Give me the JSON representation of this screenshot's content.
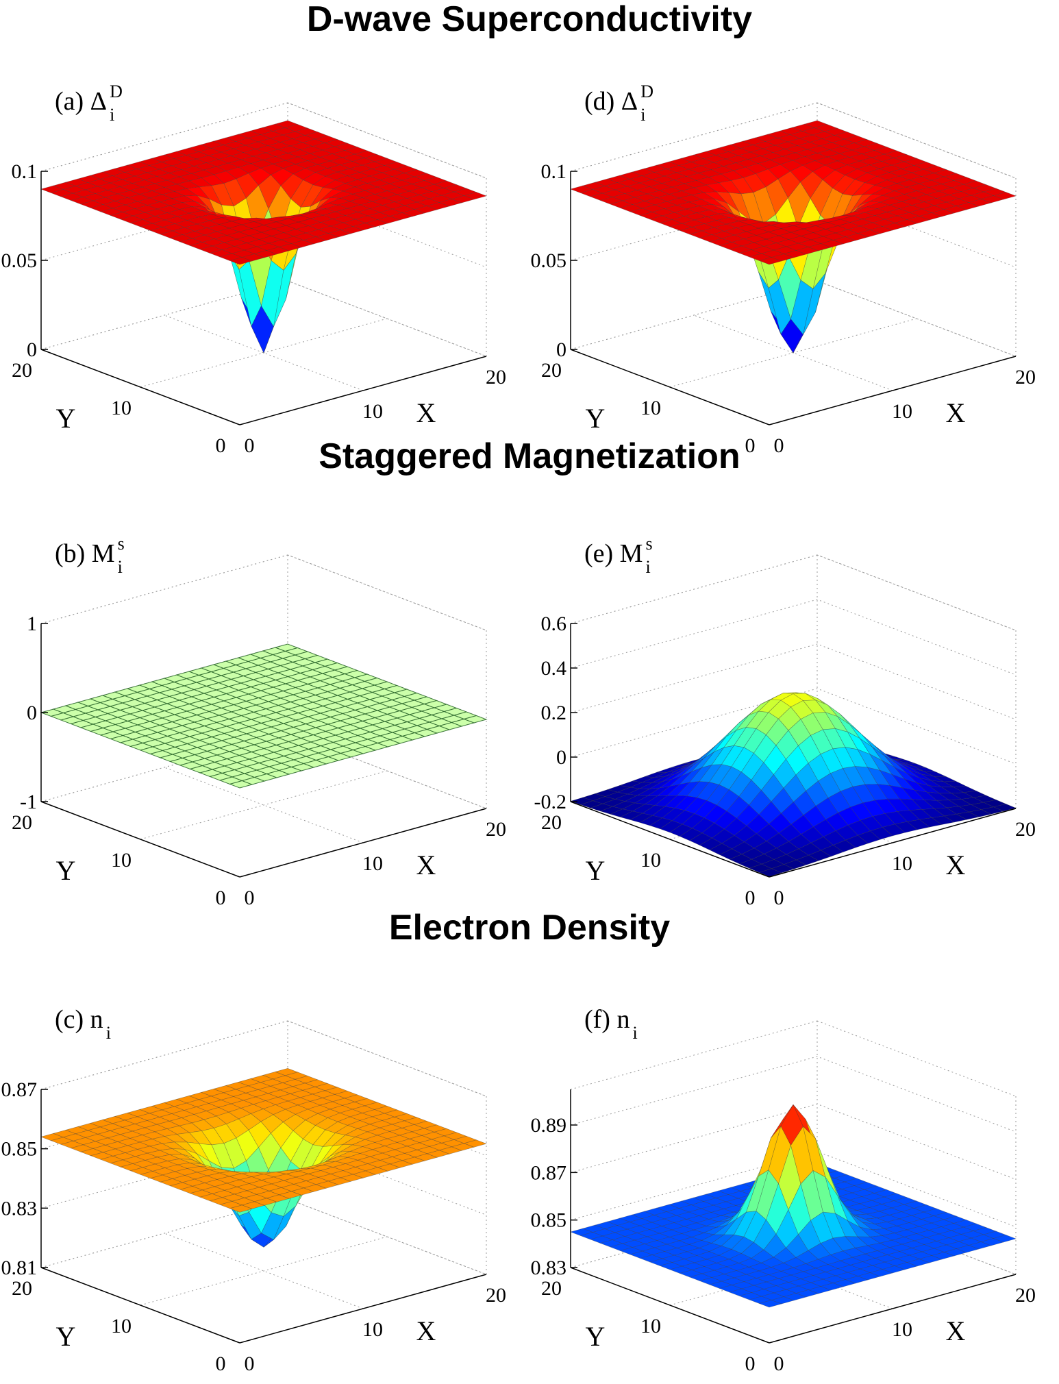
{
  "section_titles": {
    "superconductivity": "D-wave Superconductivity",
    "magnetization": "Staggered Magnetization",
    "density": "Electron Density"
  },
  "axis_names": {
    "x": "X",
    "y": "Y"
  },
  "chart_data": [
    {
      "id": "a",
      "type": "surface",
      "label": "(a) Δ",
      "label_sup": "D",
      "label_sub": "i",
      "x_ticks": [
        "0",
        "10",
        "20"
      ],
      "y_ticks": [
        "0",
        "10",
        "20"
      ],
      "z_ticks": [
        "0",
        "0.05",
        "0.1"
      ],
      "zlim": [
        0,
        0.1
      ],
      "grid_size": 21,
      "surface": {
        "kind": "dip",
        "base": 0.09,
        "center": [
          10,
          10
        ],
        "min": 0.0,
        "ring_width": 2.2
      },
      "colormap": "jet"
    },
    {
      "id": "b",
      "type": "surface",
      "label": "(b) M",
      "label_sup": "s",
      "label_sub": "i",
      "x_ticks": [
        "0",
        "10",
        "20"
      ],
      "y_ticks": [
        "0",
        "10",
        "20"
      ],
      "z_ticks": [
        "-1",
        "0",
        "1"
      ],
      "zlim": [
        -1,
        1
      ],
      "grid_size": 21,
      "surface": {
        "kind": "flat",
        "base": 0.0
      },
      "colormap": "jet"
    },
    {
      "id": "c",
      "type": "surface",
      "label": "(c) n",
      "label_sup": "",
      "label_sub": "i",
      "x_ticks": [
        "0",
        "10",
        "20"
      ],
      "y_ticks": [
        "0",
        "10",
        "20"
      ],
      "z_ticks": [
        "0.81",
        "0.83",
        "0.85",
        "0.87"
      ],
      "zlim": [
        0.81,
        0.87
      ],
      "grid_size": 21,
      "surface": {
        "kind": "dip",
        "base": 0.854,
        "center": [
          10,
          10
        ],
        "min": 0.818,
        "ring_width": 3.0
      },
      "colormap": "jet"
    },
    {
      "id": "d",
      "type": "surface",
      "label": "(d) Δ",
      "label_sup": "D",
      "label_sub": "i",
      "x_ticks": [
        "0",
        "10",
        "20"
      ],
      "y_ticks": [
        "0",
        "10",
        "20"
      ],
      "z_ticks": [
        "0",
        "0.05",
        "0.1"
      ],
      "zlim": [
        0,
        0.1
      ],
      "grid_size": 21,
      "surface": {
        "kind": "dip",
        "base": 0.09,
        "center": [
          10,
          10
        ],
        "min": 0.0,
        "ring_width": 2.6
      },
      "colormap": "jet"
    },
    {
      "id": "e",
      "type": "surface",
      "label": "(e) M",
      "label_sup": "s",
      "label_sub": "i",
      "x_ticks": [
        "0",
        "10",
        "20"
      ],
      "y_ticks": [
        "0",
        "10",
        "20"
      ],
      "z_ticks": [
        "-0.2",
        "0",
        "0.2",
        "0.4",
        "0.6"
      ],
      "zlim": [
        -0.2,
        0.6
      ],
      "grid_size": 21,
      "surface": {
        "kind": "peak",
        "base": -0.2,
        "center": [
          10,
          10
        ],
        "max": 0.3,
        "width": 6.0
      },
      "colormap": "jet"
    },
    {
      "id": "f",
      "type": "surface",
      "label": "(f) n",
      "label_sup": "",
      "label_sub": "i",
      "x_ticks": [
        "0",
        "10",
        "20"
      ],
      "y_ticks": [
        "0",
        "10",
        "20"
      ],
      "z_ticks": [
        "0.83",
        "0.85",
        "0.87",
        "0.89"
      ],
      "zlim": [
        0.83,
        0.905
      ],
      "grid_size": 21,
      "surface": {
        "kind": "peak",
        "base": 0.845,
        "center": [
          10,
          10
        ],
        "max": 0.9,
        "width": 2.6
      },
      "colormap": "jet"
    }
  ]
}
